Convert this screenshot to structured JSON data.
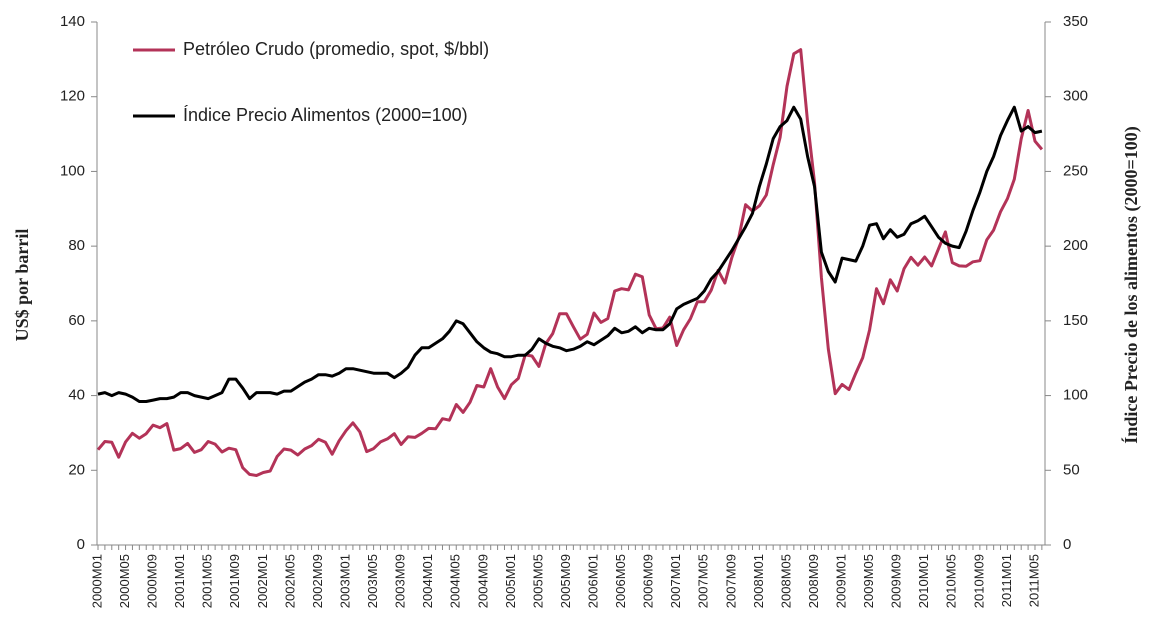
{
  "chart_data": {
    "type": "line",
    "categories": [
      "2000M01",
      null,
      null,
      null,
      "2000M05",
      null,
      null,
      null,
      "2000M09",
      null,
      null,
      null,
      "2001M01",
      null,
      null,
      null,
      "2001M05",
      null,
      null,
      null,
      "2001M09",
      null,
      null,
      null,
      "2002M01",
      null,
      null,
      null,
      "2002M05",
      null,
      null,
      null,
      "2002M09",
      null,
      null,
      null,
      "2003M01",
      null,
      null,
      null,
      "2003M05",
      null,
      null,
      null,
      "2003M09",
      null,
      null,
      null,
      "2004M01",
      null,
      null,
      null,
      "2004M05",
      null,
      null,
      null,
      "2004M09",
      null,
      null,
      null,
      "2005M01",
      null,
      null,
      null,
      "2005M05",
      null,
      null,
      null,
      "2005M09",
      null,
      null,
      null,
      "2006M01",
      null,
      null,
      null,
      "2006M05",
      null,
      null,
      null,
      "2006M09",
      null,
      null,
      null,
      "2007M01",
      null,
      null,
      null,
      "2007M05",
      null,
      null,
      null,
      "2007M09",
      null,
      null,
      null,
      "2008M01",
      null,
      null,
      null,
      "2008M05",
      null,
      null,
      null,
      "2008M09",
      null,
      null,
      null,
      "2009M01",
      null,
      null,
      null,
      "2009M05",
      null,
      null,
      null,
      "2009M09",
      null,
      null,
      null,
      "2010M01",
      null,
      null,
      null,
      "2010M05",
      null,
      null,
      null,
      "2010M09",
      null,
      null,
      null,
      "2011M01",
      null,
      null,
      null,
      "2011M05",
      null
    ],
    "series": [
      {
        "name": "Petróleo Crudo (promedio, spot, $/bbl)",
        "color": "#b33358",
        "axis": "y",
        "values": [
          25.5,
          27.7,
          27.5,
          23.5,
          27.6,
          29.9,
          28.6,
          29.8,
          32.1,
          31.4,
          32.5,
          25.4,
          25.8,
          27.2,
          24.8,
          25.5,
          27.7,
          27.0,
          24.9,
          25.9,
          25.5,
          20.7,
          18.9,
          18.6,
          19.4,
          19.8,
          23.7,
          25.7,
          25.4,
          24.1,
          25.7,
          26.6,
          28.3,
          27.5,
          24.3,
          27.9,
          30.6,
          32.7,
          30.3,
          25.0,
          25.8,
          27.6,
          28.4,
          29.8,
          26.9,
          29.0,
          28.8,
          29.9,
          31.2,
          31.1,
          33.8,
          33.4,
          37.6,
          35.5,
          38.2,
          42.7,
          42.3,
          47.2,
          42.3,
          39.2,
          42.9,
          44.6,
          50.9,
          50.6,
          47.8,
          53.9,
          56.6,
          61.9,
          61.9,
          58.4,
          55.1,
          56.4,
          62.1,
          59.6,
          60.6,
          68.0,
          68.6,
          68.3,
          72.5,
          71.8,
          61.6,
          57.9,
          58.1,
          61.0,
          53.4,
          57.6,
          60.6,
          65.1,
          65.1,
          68.2,
          73.5,
          70.1,
          76.9,
          82.2,
          91.1,
          89.4,
          90.8,
          93.7,
          101.8,
          109.1,
          122.8,
          131.5,
          132.6,
          113.2,
          97.1,
          71.6,
          52.5,
          40.5,
          43.0,
          41.6,
          46.0,
          50.1,
          57.6,
          68.6,
          64.6,
          71.0,
          68.0,
          74.0,
          77.0,
          74.9,
          77.1,
          74.7,
          79.3,
          83.8,
          75.6,
          74.7,
          74.6,
          75.8,
          76.1,
          81.7,
          84.3,
          89.2,
          92.7,
          97.9,
          108.7,
          116.3,
          108.1,
          105.9
        ]
      },
      {
        "name": "Índice Precio Alimentos (2000=100)",
        "color": "#000000",
        "axis": "y2",
        "values": [
          101,
          102,
          100,
          102,
          101,
          99,
          96,
          96,
          97,
          98,
          98,
          99,
          102,
          102,
          100,
          99,
          98,
          100,
          102,
          111,
          111,
          105,
          98,
          102,
          102,
          102,
          101,
          103,
          103,
          106,
          109,
          111,
          114,
          114,
          113,
          115,
          118,
          118,
          117,
          116,
          115,
          115,
          115,
          112,
          115,
          119,
          127,
          132,
          132,
          135,
          138,
          143,
          150,
          148,
          142,
          136,
          132,
          129,
          128,
          126,
          126,
          127,
          127,
          131,
          138,
          135,
          133,
          132,
          130,
          131,
          133,
          136,
          134,
          137,
          140,
          145,
          142,
          143,
          146,
          142,
          145,
          144,
          144,
          148,
          158,
          161,
          163,
          165,
          170,
          178,
          183,
          190,
          197,
          205,
          213,
          222,
          240,
          255,
          272,
          280,
          284,
          293,
          285,
          260,
          240,
          196,
          183,
          176,
          192,
          191,
          190,
          200,
          214,
          215,
          205,
          211,
          206,
          208,
          215,
          217,
          220,
          213,
          206,
          202,
          200,
          199,
          210,
          224,
          236,
          250,
          260,
          274,
          284,
          293,
          277,
          280,
          276,
          277
        ]
      }
    ],
    "ylabel": "US$ por barril",
    "y2label": "Índice Precio de los alimentos (2000=100)",
    "ylim": [
      0,
      140
    ],
    "yticks": [
      0,
      20,
      40,
      60,
      80,
      100,
      120,
      140
    ],
    "y2lim": [
      0,
      350
    ],
    "y2ticks": [
      0,
      50,
      100,
      150,
      200,
      250,
      300,
      350
    ],
    "grid": false,
    "legend": "upper left"
  }
}
